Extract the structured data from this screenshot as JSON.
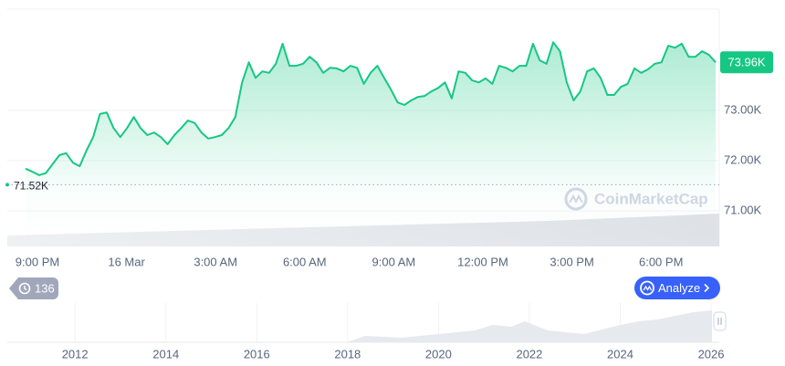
{
  "chart_data": {
    "type": "area",
    "color": "#16c784",
    "ylim": [
      70290,
      75020
    ],
    "yticks": [
      {
        "value": 71000,
        "label": "71.00K"
      },
      {
        "value": 72000,
        "label": "72.00K"
      },
      {
        "value": 73000,
        "label": "73.00K"
      }
    ],
    "grid": true,
    "xticks": [
      "9:00 PM",
      "16 Mar",
      "3:00 AM",
      "6:00 AM",
      "9:00 AM",
      "12:00 PM",
      "3:00 PM",
      "6:00 PM"
    ],
    "open_price": {
      "value": 71520,
      "label": "71.52K"
    },
    "last_price": {
      "value": 73960,
      "label": "73.96K"
    },
    "series": [
      {
        "name": "Price",
        "color": "#16c784",
        "values": [
          71840,
          71780,
          71710,
          71750,
          71930,
          72110,
          72150,
          71960,
          71890,
          72200,
          72470,
          72930,
          72960,
          72650,
          72470,
          72650,
          72870,
          72650,
          72510,
          72560,
          72470,
          72330,
          72510,
          72650,
          72800,
          72750,
          72560,
          72440,
          72470,
          72510,
          72650,
          72870,
          73560,
          73960,
          73650,
          73780,
          73750,
          73930,
          74330,
          73890,
          73890,
          73930,
          74070,
          73960,
          73750,
          73850,
          73840,
          73780,
          73890,
          73850,
          73530,
          73750,
          73890,
          73650,
          73420,
          73160,
          73110,
          73200,
          73270,
          73290,
          73380,
          73450,
          73560,
          73240,
          73780,
          73750,
          73600,
          73560,
          73640,
          73530,
          73890,
          73850,
          73780,
          73890,
          73890,
          74330,
          74000,
          73930,
          74360,
          74180,
          73560,
          73200,
          73380,
          73780,
          73840,
          73650,
          73310,
          73310,
          73470,
          73530,
          73840,
          73750,
          73820,
          73930,
          73960,
          74290,
          74250,
          74330,
          74070,
          74070,
          74180,
          74110,
          73960
        ]
      }
    ],
    "navigator": {
      "xlim": [
        2010.51,
        2026.18
      ],
      "xticks": [
        2012,
        2014,
        2016,
        2018,
        2020,
        2022,
        2024,
        2026
      ]
    }
  },
  "ui": {
    "history_count": "136",
    "analyze": "Analyze",
    "watermark": "CoinMarketCap"
  }
}
